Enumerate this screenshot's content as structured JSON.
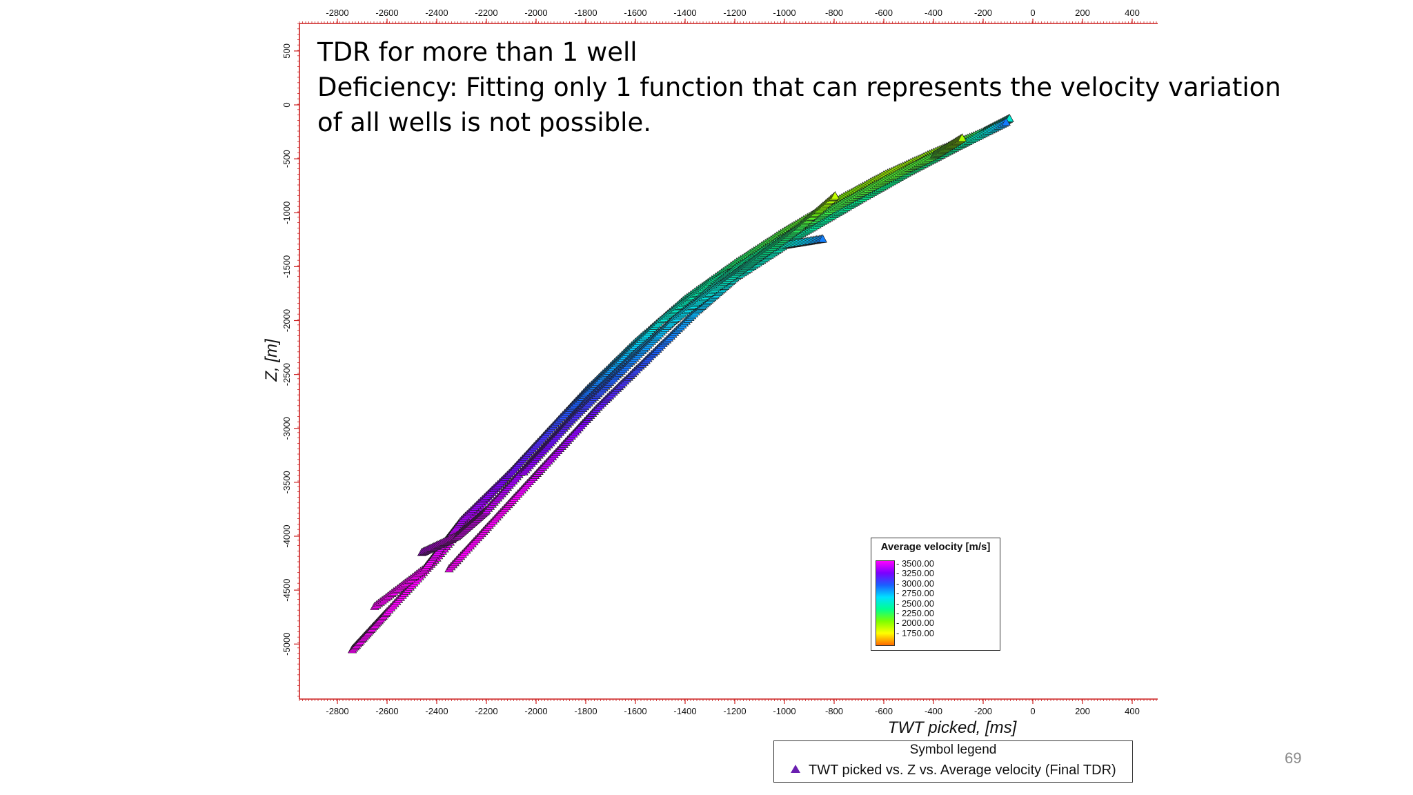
{
  "slide": {
    "title_line1": "TDR for more than 1 well",
    "title_line2": "Deficiency: Fitting only 1 function that can represents the velocity variation",
    "title_line3": "of all wells is not possible.",
    "page_number": "69"
  },
  "chart_data": {
    "type": "scatter",
    "xlabel": "TWT picked, [ms]",
    "ylabel": "Z, [m]",
    "xlim": [
      -2950,
      500
    ],
    "ylim": [
      -5500,
      700
    ],
    "x_ticks": [
      -2800,
      -2600,
      -2400,
      -2200,
      -2000,
      -1800,
      -1600,
      -1400,
      -1200,
      -1000,
      -800,
      -600,
      -400,
      -200,
      0,
      200,
      400
    ],
    "y_ticks": [
      500,
      0,
      -500,
      -1000,
      -1500,
      -2000,
      -2500,
      -3000,
      -3500,
      -4000,
      -4500,
      -5000
    ],
    "grid": false,
    "color_scale": {
      "title": "Average velocity [m/s]",
      "values": [
        "3500.00",
        "3250.00",
        "3000.00",
        "2750.00",
        "2500.00",
        "2250.00",
        "2000.00",
        "1750.00"
      ],
      "colors": [
        "#ff00ff",
        "#7a00ff",
        "#1a60ff",
        "#00e0ff",
        "#00ff90",
        "#7dff00",
        "#ffff00",
        "#ff6a00"
      ]
    },
    "series": [
      {
        "name": "TWT picked vs. Z vs. Average velocity (Final TDR)",
        "marker": "triangle",
        "wells": [
          {
            "points": [
              [
                -2740,
                -5050
              ],
              [
                -2600,
                -4700
              ],
              [
                -2400,
                -4200
              ],
              [
                -2200,
                -3650
              ],
              [
                -2000,
                -3150
              ],
              [
                -1800,
                -2650
              ],
              [
                -1600,
                -2200
              ],
              [
                -1400,
                -1800
              ],
              [
                -1200,
                -1470
              ],
              [
                -1000,
                -1170
              ],
              [
                -800,
                -900
              ],
              [
                -600,
                -650
              ],
              [
                -400,
                -440
              ],
              [
                -200,
                -250
              ],
              [
                -90,
                -120
              ]
            ]
          },
          {
            "points": [
              [
                -2650,
                -4650
              ],
              [
                -2450,
                -4300
              ],
              [
                -2300,
                -3850
              ],
              [
                -2100,
                -3400
              ],
              [
                -1900,
                -2900
              ],
              [
                -1700,
                -2450
              ],
              [
                -1500,
                -2000
              ],
              [
                -1300,
                -1650
              ],
              [
                -1100,
                -1400
              ],
              [
                -900,
                -1150
              ],
              [
                -700,
                -880
              ],
              [
                -500,
                -620
              ],
              [
                -300,
                -380
              ],
              [
                -100,
                -150
              ]
            ]
          },
          {
            "points": [
              [
                -2460,
                -4150
              ],
              [
                -2320,
                -4000
              ],
              [
                -2200,
                -3760
              ],
              [
                -2000,
                -3250
              ],
              [
                -1800,
                -2750
              ],
              [
                -1600,
                -2300
              ],
              [
                -1400,
                -1900
              ],
              [
                -1200,
                -1520
              ],
              [
                -1000,
                -1220
              ],
              [
                -800,
                -950
              ],
              [
                -600,
                -700
              ],
              [
                -400,
                -470
              ],
              [
                -280,
                -300
              ]
            ]
          },
          {
            "points": [
              [
                -2350,
                -4300
              ],
              [
                -2150,
                -3800
              ],
              [
                -1950,
                -3300
              ],
              [
                -1750,
                -2800
              ],
              [
                -1550,
                -2350
              ],
              [
                -1350,
                -1900
              ],
              [
                -1200,
                -1600
              ],
              [
                -1000,
                -1300
              ],
              [
                -840,
                -1240
              ]
            ]
          },
          {
            "points": [
              [
                -2050,
                -3400
              ],
              [
                -1850,
                -2900
              ],
              [
                -1650,
                -2450
              ],
              [
                -1450,
                -2000
              ],
              [
                -1250,
                -1650
              ],
              [
                -1100,
                -1400
              ],
              [
                -950,
                -1150
              ],
              [
                -790,
                -830
              ]
            ]
          }
        ]
      }
    ]
  }
}
